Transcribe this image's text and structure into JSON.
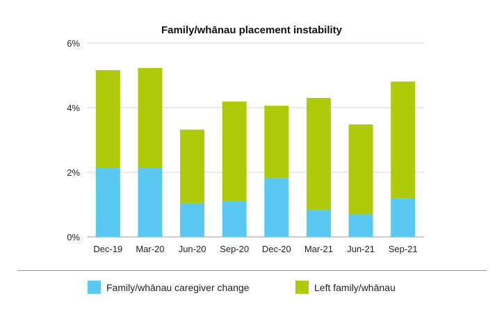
{
  "chart_data": {
    "type": "bar",
    "stacked": true,
    "title": "Family/whānau placement instability",
    "categories": [
      "Dec-19",
      "Mar-20",
      "Jun-20",
      "Sep-20",
      "Dec-20",
      "Mar-21",
      "Jun-21",
      "Sep-21"
    ],
    "series": [
      {
        "name": "Family/whānau caregiver change",
        "color": "#5bc8f2",
        "values": [
          2.15,
          2.13,
          1.04,
          1.1,
          1.82,
          0.83,
          0.7,
          1.19
        ]
      },
      {
        "name": "Left family/whānau",
        "color": "#afca0b",
        "values": [
          3.01,
          3.1,
          2.28,
          3.09,
          2.24,
          3.47,
          2.78,
          3.62
        ]
      }
    ],
    "ylim": [
      0,
      6
    ],
    "yticks": [
      "0%",
      "2%",
      "4%",
      "6%"
    ],
    "ytick_values": [
      0,
      2,
      4,
      6
    ],
    "grid": true,
    "legend_position": "bottom"
  }
}
